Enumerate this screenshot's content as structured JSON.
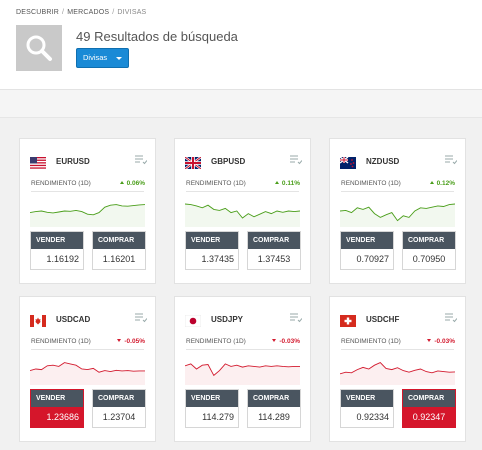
{
  "breadcrumb": [
    "DESCUBRIR",
    "MERCADOS",
    "DIVISAS"
  ],
  "header": {
    "results_title": "49 Resultados de búsqueda",
    "filter_label": "Divisas"
  },
  "colors": {
    "up": "#4a9e1a",
    "down": "#d31b2f",
    "accent": "#1a8ad6",
    "trade_bar": "#4a5560"
  },
  "cards": [
    {
      "symbol": "EURUSD",
      "flag": "us-flag-icon",
      "perf_label": "RENDIMIENTO (1D)",
      "change": "0.06%",
      "direction": "up",
      "sell_label": "VENDER",
      "sell_price": "1.16192",
      "buy_label": "COMPRAR",
      "buy_price": "1.16201",
      "highlight": "none",
      "spark": [
        0.45,
        0.48,
        0.5,
        0.46,
        0.44,
        0.47,
        0.5,
        0.49,
        0.52,
        0.48,
        0.4,
        0.38,
        0.45,
        0.62,
        0.68,
        0.7,
        0.66,
        0.65,
        0.67,
        0.69,
        0.7
      ]
    },
    {
      "symbol": "GBPUSD",
      "flag": "gb-flag-icon",
      "perf_label": "RENDIMIENTO (1D)",
      "change": "0.11%",
      "direction": "up",
      "sell_label": "VENDER",
      "sell_price": "1.37435",
      "buy_label": "COMPRAR",
      "buy_price": "1.37453",
      "highlight": "none",
      "spark": [
        0.72,
        0.7,
        0.66,
        0.6,
        0.68,
        0.55,
        0.52,
        0.58,
        0.45,
        0.5,
        0.28,
        0.42,
        0.32,
        0.4,
        0.48,
        0.42,
        0.5,
        0.46,
        0.5,
        0.48,
        0.5
      ]
    },
    {
      "symbol": "NZDUSD",
      "flag": "nz-flag-icon",
      "perf_label": "RENDIMIENTO (1D)",
      "change": "0.12%",
      "direction": "up",
      "sell_label": "VENDER",
      "sell_price": "0.70927",
      "buy_label": "COMPRAR",
      "buy_price": "0.70950",
      "highlight": "none",
      "spark": [
        0.5,
        0.52,
        0.45,
        0.6,
        0.55,
        0.62,
        0.42,
        0.3,
        0.38,
        0.45,
        0.2,
        0.35,
        0.3,
        0.5,
        0.6,
        0.58,
        0.62,
        0.66,
        0.64,
        0.7,
        0.72
      ]
    },
    {
      "symbol": "USDCAD",
      "flag": "ca-flag-icon",
      "perf_label": "RENDIMIENTO (1D)",
      "change": "-0.05%",
      "direction": "down",
      "sell_label": "VENDER",
      "sell_price": "1.23686",
      "buy_label": "COMPRAR",
      "buy_price": "1.23704",
      "highlight": "sell",
      "spark": [
        0.45,
        0.5,
        0.48,
        0.6,
        0.62,
        0.58,
        0.7,
        0.66,
        0.62,
        0.5,
        0.48,
        0.52,
        0.4,
        0.45,
        0.42,
        0.46,
        0.44,
        0.45,
        0.43,
        0.44,
        0.44
      ]
    },
    {
      "symbol": "USDJPY",
      "flag": "jp-flag-icon",
      "perf_label": "RENDIMIENTO (1D)",
      "change": "-0.03%",
      "direction": "down",
      "sell_label": "VENDER",
      "sell_price": "114.279",
      "buy_label": "COMPRAR",
      "buy_price": "114.289",
      "highlight": "none",
      "spark": [
        0.6,
        0.66,
        0.5,
        0.62,
        0.64,
        0.3,
        0.45,
        0.66,
        0.58,
        0.62,
        0.56,
        0.6,
        0.58,
        0.56,
        0.6,
        0.58,
        0.6,
        0.58,
        0.57,
        0.58,
        0.58
      ]
    },
    {
      "symbol": "USDCHF",
      "flag": "ch-flag-icon",
      "perf_label": "RENDIMIENTO (1D)",
      "change": "-0.03%",
      "direction": "down",
      "sell_label": "VENDER",
      "sell_price": "0.92334",
      "buy_label": "COMPRAR",
      "buy_price": "0.92347",
      "highlight": "buy",
      "spark": [
        0.35,
        0.4,
        0.38,
        0.48,
        0.55,
        0.5,
        0.62,
        0.7,
        0.52,
        0.48,
        0.54,
        0.45,
        0.4,
        0.46,
        0.5,
        0.42,
        0.38,
        0.44,
        0.42,
        0.4,
        0.41
      ]
    }
  ]
}
